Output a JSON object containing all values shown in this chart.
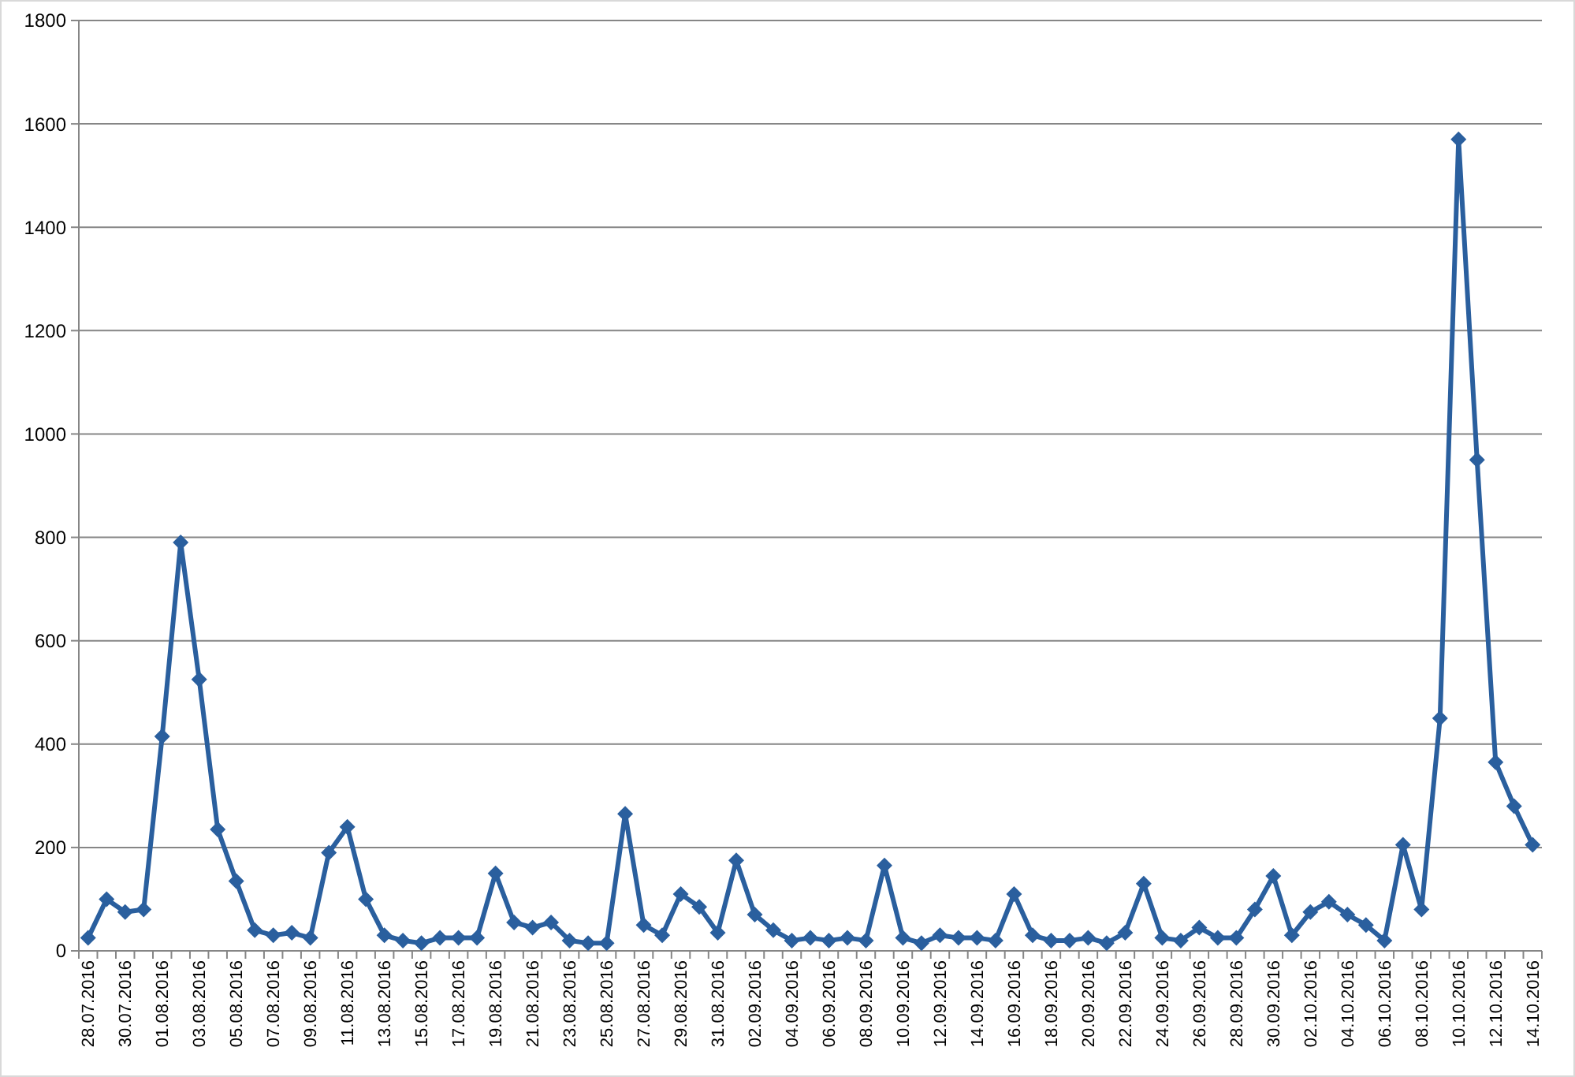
{
  "chart_data": {
    "type": "line",
    "categories": [
      "28.07.2016",
      null,
      "30.07.2016",
      null,
      "01.08.2016",
      null,
      "03.08.2016",
      null,
      "05.08.2016",
      null,
      "07.08.2016",
      null,
      "09.08.2016",
      null,
      "11.08.2016",
      null,
      "13.08.2016",
      null,
      "15.08.2016",
      null,
      "17.08.2016",
      null,
      "19.08.2016",
      null,
      "21.08.2016",
      null,
      "23.08.2016",
      null,
      "25.08.2016",
      null,
      "27.08.2016",
      null,
      "29.08.2016",
      null,
      "31.08.2016",
      null,
      "02.09.2016",
      null,
      "04.09.2016",
      null,
      "06.09.2016",
      null,
      "08.09.2016",
      null,
      "10.09.2016",
      null,
      "12.09.2016",
      null,
      "14.09.2016",
      null,
      "16.09.2016",
      null,
      "18.09.2016",
      null,
      "20.09.2016",
      null,
      "22.09.2016",
      null,
      "24.09.2016",
      null,
      "26.09.2016",
      null,
      "28.09.2016",
      null,
      "30.09.2016",
      null,
      "02.10.2016",
      null,
      "04.10.2016",
      null,
      "06.10.2016",
      null,
      "08.10.2016",
      null,
      "10.10.2016",
      null,
      "12.10.2016",
      null,
      "14.10.2016"
    ],
    "series": [
      {
        "color": "#2a5f9e",
        "values": [
          25,
          100,
          75,
          80,
          415,
          790,
          525,
          235,
          135,
          40,
          30,
          35,
          25,
          190,
          240,
          100,
          30,
          20,
          15,
          25,
          25,
          25,
          150,
          55,
          45,
          55,
          20,
          15,
          15,
          265,
          50,
          30,
          110,
          85,
          35,
          175,
          70,
          40,
          20,
          25,
          20,
          25,
          20,
          165,
          25,
          15,
          30,
          25,
          25,
          20,
          110,
          30,
          20,
          20,
          25,
          15,
          35,
          130,
          25,
          20,
          45,
          25,
          25,
          80,
          145,
          30,
          75,
          95,
          70,
          50,
          20,
          205,
          80,
          450,
          1570,
          950,
          365,
          280,
          205
        ]
      }
    ],
    "ylim": [
      0,
      1800
    ],
    "yticks": [
      0,
      200,
      400,
      600,
      800,
      1000,
      1200,
      1400,
      1600,
      1800
    ],
    "grid": true,
    "marker": "diamond",
    "line_style": "solid"
  }
}
